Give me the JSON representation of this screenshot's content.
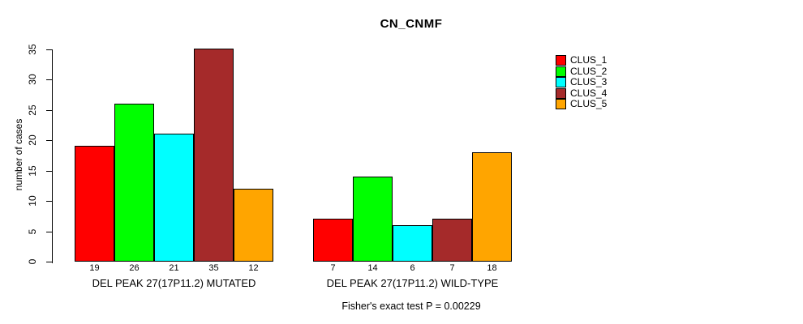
{
  "title": "CN_CNMF",
  "y_axis": {
    "label": "number of cases",
    "ticks": [
      0,
      5,
      10,
      15,
      20,
      25,
      30,
      35
    ]
  },
  "footnote": "Fisher's exact test P = 0.00229",
  "legend": {
    "position": "top-right",
    "items": [
      {
        "label": "CLUS_1",
        "color": "#ff0000"
      },
      {
        "label": "CLUS_2",
        "color": "#00ff00"
      },
      {
        "label": "CLUS_3",
        "color": "#00ffff"
      },
      {
        "label": "CLUS_4",
        "color": "#a52a2a"
      },
      {
        "label": "CLUS_5",
        "color": "#ffa500"
      }
    ]
  },
  "chart_data": {
    "type": "bar",
    "title": "CN_CNMF",
    "ylabel": "number of cases",
    "xlabel": "",
    "categories": [
      "DEL PEAK 27(17P11.2) MUTATED",
      "DEL PEAK 27(17P11.2) WILD-TYPE"
    ],
    "series": [
      {
        "name": "CLUS_1",
        "color": "#ff0000",
        "values": [
          19,
          7
        ]
      },
      {
        "name": "CLUS_2",
        "color": "#00ff00",
        "values": [
          26,
          14
        ]
      },
      {
        "name": "CLUS_3",
        "color": "#00ffff",
        "values": [
          21,
          6
        ]
      },
      {
        "name": "CLUS_4",
        "color": "#a52a2a",
        "values": [
          35,
          7
        ]
      },
      {
        "name": "CLUS_5",
        "color": "#ffa500",
        "values": [
          12,
          18
        ]
      }
    ],
    "ylim": [
      0,
      35
    ],
    "yticks": [
      0,
      5,
      10,
      15,
      20,
      25,
      30,
      35
    ],
    "grid": false,
    "legend_position": "right",
    "bar_value_labels": true,
    "annotation": "Fisher's exact test P = 0.00229"
  }
}
